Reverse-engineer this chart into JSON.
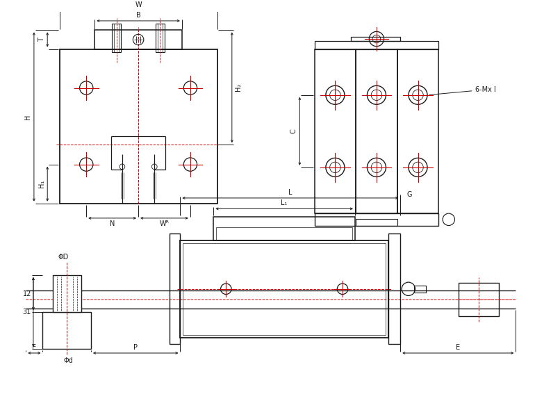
{
  "bg_color": "#ffffff",
  "line_color": "#1a1a1a",
  "red_color": "#cc0000",
  "labels": {
    "W": "W",
    "B": "B",
    "T": "T",
    "H": "H",
    "H1": "H₁",
    "H2": "H₂",
    "N": "N",
    "WR": "Wᴿ",
    "L": "L",
    "L1": "L₁",
    "G": "G",
    "C": "C",
    "E": "E",
    "P": "P",
    "phiD": "ΦD",
    "phid": "Φd",
    "six_mx": "6-Mx l",
    "n12": "12",
    "n31": "31"
  }
}
